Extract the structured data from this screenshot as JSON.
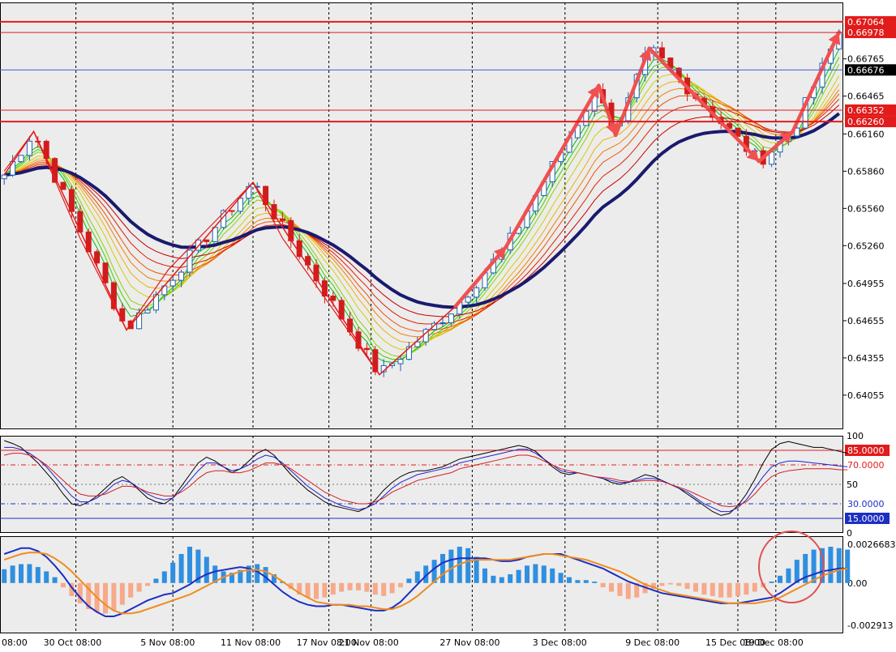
{
  "colors": {
    "background": "#ececec",
    "grid": "#000000",
    "bull_candle": "#1e5fb4",
    "bear_candle": "#d01c1c",
    "level_line": "#e21b1b",
    "current_price_line": "#3c5fd8",
    "current_price_tag": "#000000",
    "slow_ma": "#1a1a6e",
    "arrow": "#f05050",
    "macd_pos": "#2f8fe0",
    "macd_neg": "#f7a98a",
    "macd_line": "#1d2fc2",
    "signal_line": "#f08c1e",
    "stoch_main": "#000000",
    "stoch_mid": "#2020d0",
    "stoch_signal": "#d02020",
    "stoch_high": "#e21b1b",
    "stoch_low": "#1d2fc2",
    "annotation_circle": "#e05050"
  },
  "chart_data": [
    {
      "type": "line",
      "panel": "price",
      "x_labels": [
        "08:00",
        "30 Oct 08:00",
        "5 Nov 08:00",
        "11 Nov 08:00",
        "17 Nov 08:00",
        "21 Nov 08:00",
        "27 Nov 08:00",
        "3 Dec 08:00",
        "9 Dec 08:00",
        "15 Dec 08:00",
        "19 Dec 08:00"
      ],
      "y_ticks": [
        "0.66765",
        "0.66465",
        "0.66160",
        "0.65860",
        "0.65560",
        "0.65260",
        "0.64955",
        "0.64655",
        "0.64355",
        "0.64055"
      ],
      "ylim": [
        0.6378,
        0.6722
      ],
      "grid": true,
      "horizontal_levels": [
        {
          "label": "0.67064",
          "value": 0.67064,
          "style": "thick"
        },
        {
          "label": "0.66978",
          "value": 0.66978,
          "style": "thin"
        },
        {
          "label": "0.66352",
          "value": 0.66352,
          "style": "thin"
        },
        {
          "label": "0.66260",
          "value": 0.6626,
          "style": "thick"
        }
      ],
      "current_price": {
        "label": "0.66676",
        "value": 0.66676
      },
      "swing_path": [
        {
          "x": 0,
          "y": 0.6583
        },
        {
          "x": 3.5,
          "y": 0.6618
        },
        {
          "x": 14.5,
          "y": 0.6458
        },
        {
          "x": 29.5,
          "y": 0.6577
        },
        {
          "x": 44.5,
          "y": 0.6422
        },
        {
          "x": 53.5,
          "y": 0.6477
        },
        {
          "x": 59.5,
          "y": 0.6525
        },
        {
          "x": 70.5,
          "y": 0.6655
        },
        {
          "x": 72.5,
          "y": 0.6615
        },
        {
          "x": 76.5,
          "y": 0.6685
        },
        {
          "x": 89.5,
          "y": 0.6594
        },
        {
          "x": 93.5,
          "y": 0.6618
        },
        {
          "x": 99,
          "y": 0.6698
        }
      ]
    },
    {
      "type": "line",
      "panel": "stochastic",
      "y_ticks": [
        "100",
        "50",
        "0"
      ],
      "ylim": [
        0,
        100
      ],
      "levels": [
        {
          "label": "85.0000",
          "value": 85
        },
        {
          "label": "70.0000",
          "value": 70
        },
        {
          "label": "30.0000",
          "value": 30
        },
        {
          "label": "15.0000",
          "value": 15
        }
      ],
      "series": [
        {
          "values": [
            95,
            92,
            88,
            80,
            72,
            62,
            52,
            40,
            30,
            28,
            32,
            38,
            46,
            54,
            58,
            52,
            44,
            36,
            32,
            30,
            36,
            48,
            60,
            72,
            78,
            74,
            68,
            62,
            66,
            74,
            82,
            86,
            80,
            70,
            60,
            52,
            44,
            38,
            32,
            28,
            26,
            24,
            22,
            26,
            34,
            44,
            52,
            58,
            62,
            64,
            64,
            66,
            68,
            72,
            76,
            78,
            80,
            82,
            84,
            86,
            88,
            90,
            88,
            84,
            76,
            68,
            62,
            60,
            62,
            60,
            58,
            56,
            52,
            50,
            52,
            56,
            60,
            58,
            54,
            50,
            46,
            40,
            34,
            28,
            22,
            18,
            20,
            28,
            40,
            55,
            72,
            86,
            92,
            94,
            92,
            90,
            88,
            88,
            86,
            84,
            82
          ]
        },
        {
          "values": [
            88,
            88,
            86,
            82,
            76,
            68,
            58,
            48,
            38,
            32,
            32,
            36,
            42,
            50,
            54,
            52,
            46,
            40,
            36,
            34,
            36,
            44,
            54,
            64,
            72,
            72,
            68,
            64,
            66,
            70,
            76,
            80,
            78,
            72,
            64,
            56,
            48,
            42,
            36,
            32,
            28,
            26,
            24,
            26,
            30,
            38,
            46,
            52,
            56,
            60,
            62,
            64,
            66,
            68,
            72,
            74,
            76,
            78,
            80,
            82,
            84,
            86,
            86,
            82,
            76,
            70,
            64,
            62,
            62,
            60,
            58,
            56,
            54,
            52,
            52,
            54,
            56,
            56,
            54,
            50,
            46,
            42,
            36,
            30,
            26,
            22,
            22,
            26,
            34,
            46,
            58,
            68,
            72,
            74,
            74,
            73,
            72,
            71,
            70,
            69,
            68
          ]
        },
        {
          "values": [
            80,
            82,
            82,
            80,
            76,
            70,
            62,
            54,
            46,
            40,
            38,
            38,
            40,
            44,
            48,
            48,
            46,
            42,
            40,
            38,
            38,
            42,
            48,
            56,
            62,
            64,
            64,
            62,
            62,
            64,
            68,
            72,
            72,
            70,
            66,
            60,
            54,
            48,
            42,
            38,
            34,
            32,
            30,
            30,
            32,
            36,
            42,
            46,
            50,
            54,
            56,
            58,
            60,
            62,
            66,
            68,
            70,
            72,
            74,
            76,
            78,
            80,
            80,
            78,
            74,
            70,
            66,
            64,
            62,
            60,
            58,
            57,
            56,
            54,
            53,
            53,
            54,
            54,
            53,
            50,
            47,
            44,
            40,
            36,
            32,
            28,
            27,
            28,
            32,
            40,
            50,
            58,
            62,
            64,
            65,
            66,
            66,
            66,
            66,
            65,
            65
          ]
        }
      ]
    },
    {
      "type": "bar",
      "panel": "macd",
      "y_ticks": [
        "0.0026683",
        "0.00",
        "-0.002913"
      ],
      "ylim": [
        -0.002913,
        0.0026683
      ],
      "series": [
        {
          "values": [
            0.00095,
            0.0012,
            0.0013,
            0.0013,
            0.0011,
            0.0008,
            0.0004,
            -0.0003,
            -0.0009,
            -0.0014,
            -0.0018,
            -0.002,
            -0.0021,
            -0.0019,
            -0.0015,
            -0.001,
            -0.0006,
            -0.0002,
            0.0003,
            0.0008,
            0.0014,
            0.002,
            0.0025,
            0.0023,
            0.0018,
            0.0012,
            0.0008,
            0.0007,
            0.0009,
            0.0012,
            0.0013,
            0.0011,
            0.0006,
            0.0001,
            -0.0004,
            -0.0008,
            -0.001,
            -0.0011,
            -0.001,
            -0.0008,
            -0.0006,
            -0.0005,
            -0.0005,
            -0.0006,
            -0.0008,
            -0.0009,
            -0.0007,
            -0.0003,
            0.0003,
            0.0008,
            0.0012,
            0.0016,
            0.002,
            0.0023,
            0.0025,
            0.0024,
            0.0018,
            0.001,
            0.0005,
            0.0004,
            0.0006,
            0.0009,
            0.0012,
            0.0013,
            0.0012,
            0.001,
            0.0007,
            0.0004,
            0.0002,
            0.0002,
            0.0001,
            -0.0003,
            -0.0006,
            -0.0009,
            -0.0011,
            -0.001,
            -0.0007,
            -0.0004,
            -0.0002,
            -0.0001,
            -0.0002,
            -0.0004,
            -0.0006,
            -0.0008,
            -0.0009,
            -0.001,
            -0.001,
            -0.0009,
            -0.0008,
            -0.0006,
            -0.0003,
            0.0001,
            0.0005,
            0.001,
            0.0016,
            0.002,
            0.0023,
            0.0024,
            0.0025,
            0.0024,
            0.0023
          ]
        },
        {
          "values": [
            0.002,
            0.0022,
            0.0024,
            0.0024,
            0.0022,
            0.0018,
            0.0012,
            0.0005,
            -0.0003,
            -0.001,
            -0.0016,
            -0.002,
            -0.0023,
            -0.0023,
            -0.0021,
            -0.0018,
            -0.0015,
            -0.0012,
            -0.001,
            -0.0008,
            -0.0007,
            -0.0004,
            -0.0001,
            0.0003,
            0.0006,
            0.0008,
            0.0009,
            0.001,
            0.0011,
            0.001,
            0.0008,
            0.0004,
            -0.0001,
            -0.0006,
            -0.001,
            -0.0013,
            -0.0015,
            -0.0016,
            -0.0016,
            -0.0015,
            -0.0015,
            -0.0016,
            -0.0017,
            -0.0018,
            -0.0019,
            -0.0019,
            -0.0017,
            -0.0013,
            -0.0007,
            -0.0001,
            0.0005,
            0.001,
            0.0014,
            0.0016,
            0.0017,
            0.0017,
            0.0017,
            0.0017,
            0.0016,
            0.0015,
            0.0015,
            0.0016,
            0.0018,
            0.0019,
            0.002,
            0.002,
            0.002,
            0.0018,
            0.0016,
            0.0014,
            0.0012,
            0.001,
            0.0007,
            0.0004,
            0.0001,
            -0.0001,
            -0.0003,
            -0.0005,
            -0.0007,
            -0.0008,
            -0.0009,
            -0.001,
            -0.0011,
            -0.0012,
            -0.0013,
            -0.0014,
            -0.0014,
            -0.0014,
            -0.0013,
            -0.0012,
            -0.0011,
            -0.001,
            -0.0007,
            -0.0003,
            0.0001,
            0.0004,
            0.0006,
            0.0008,
            0.0009,
            0.001,
            0.001
          ]
        },
        {
          "values": [
            0.0016,
            0.0018,
            0.002,
            0.0021,
            0.0021,
            0.002,
            0.0017,
            0.0013,
            0.0008,
            0.0002,
            -0.0004,
            -0.001,
            -0.0015,
            -0.0019,
            -0.0021,
            -0.0021,
            -0.002,
            -0.0018,
            -0.0016,
            -0.0014,
            -0.0012,
            -0.001,
            -0.0008,
            -0.0005,
            -0.0002,
            0.0001,
            0.0004,
            0.0006,
            0.0008,
            0.0009,
            0.0009,
            0.0008,
            0.0005,
            0.0001,
            -0.0003,
            -0.0007,
            -0.001,
            -0.0013,
            -0.0014,
            -0.0015,
            -0.0015,
            -0.0015,
            -0.0016,
            -0.0016,
            -0.0017,
            -0.0018,
            -0.0018,
            -0.0016,
            -0.0013,
            -0.0009,
            -0.0004,
            0.0001,
            0.0006,
            0.001,
            0.0013,
            0.0015,
            0.0016,
            0.0016,
            0.0016,
            0.0016,
            0.0016,
            0.0017,
            0.0018,
            0.0019,
            0.002,
            0.002,
            0.0019,
            0.0018,
            0.0017,
            0.0016,
            0.0014,
            0.0012,
            0.001,
            0.0008,
            0.0005,
            0.0002,
            -0.0001,
            -0.0003,
            -0.0005,
            -0.0007,
            -0.0008,
            -0.0009,
            -0.001,
            -0.0011,
            -0.0012,
            -0.0013,
            -0.0014,
            -0.0014,
            -0.0014,
            -0.0014,
            -0.0013,
            -0.0012,
            -0.001,
            -0.0007,
            -0.0004,
            -0.0001,
            0.0002,
            0.0005,
            0.0007,
            0.0009,
            0.001
          ]
        }
      ]
    }
  ]
}
